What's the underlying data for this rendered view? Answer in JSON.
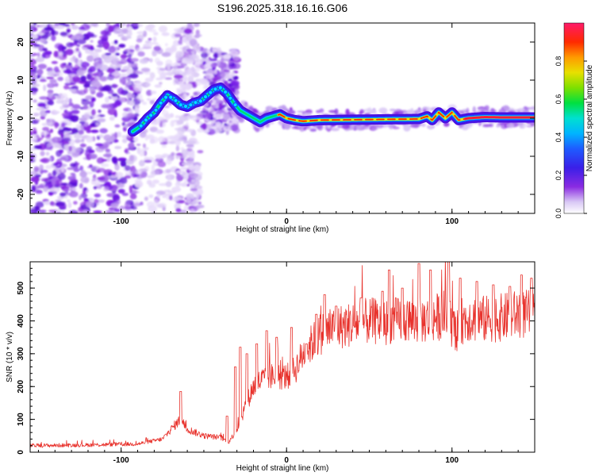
{
  "title": "S196.2025.318.16.16.G06",
  "chart_data": [
    {
      "type": "heatmap",
      "name": "spectrogram",
      "xlabel": "Height of straight line (km)",
      "ylabel": "Frequency (Hz)",
      "xlim": [
        -155,
        150
      ],
      "ylim": [
        -25,
        25
      ],
      "xticks": [
        -100,
        0,
        100
      ],
      "yticks": [
        20,
        10,
        0,
        -10,
        -20
      ],
      "trace_x": [
        -93,
        -88,
        -84,
        -80,
        -76,
        -72,
        -68,
        -64,
        -60,
        -56,
        -52,
        -48,
        -44,
        -40,
        -36,
        -32,
        -28,
        -24,
        -20,
        -16,
        -12,
        -8,
        -4,
        0,
        5,
        10,
        20,
        40,
        60,
        80,
        85,
        88,
        92,
        96,
        100,
        104,
        110,
        120,
        130,
        140,
        150
      ],
      "trace_y": [
        -3.5,
        -2,
        0,
        1.5,
        4,
        6,
        5,
        3.5,
        3,
        4,
        4.5,
        6,
        7.5,
        8,
        6.5,
        4,
        2,
        1,
        0,
        -1,
        0,
        0.5,
        1,
        0,
        -0.5,
        -0.8,
        -0.5,
        -0.4,
        -0.3,
        -0.2,
        0.5,
        -0.5,
        1.5,
        0,
        1.5,
        -0.5,
        0,
        0.3,
        0.2,
        0.2,
        0.2
      ],
      "colorbar": {
        "label": "Normalized spectral amplitude",
        "ticks": [
          "0.0",
          "0.2",
          "0.4",
          "0.6",
          "0.8"
        ],
        "range": [
          0,
          1
        ]
      }
    },
    {
      "type": "line",
      "name": "snr",
      "xlabel": "Height of straight line (km)",
      "ylabel": "SNR (10 * v/v)",
      "xlim": [
        -155,
        150
      ],
      "ylim": [
        0,
        580
      ],
      "xticks": [
        -100,
        0,
        100
      ],
      "yticks": [
        0,
        100,
        200,
        300,
        400,
        500
      ],
      "color": "#e8322c",
      "baseline_x": [
        -155,
        -120,
        -90,
        -75,
        -68,
        -64,
        -60,
        -50,
        -40,
        -35,
        -30,
        -25,
        -20,
        -15,
        -10,
        -5,
        0,
        5,
        10,
        15,
        20,
        25,
        30,
        40,
        50,
        60,
        70,
        80,
        90,
        95,
        100,
        103,
        106,
        110,
        120,
        130,
        140,
        150
      ],
      "baseline_y": [
        20,
        22,
        25,
        40,
        80,
        100,
        70,
        50,
        45,
        30,
        70,
        140,
        200,
        220,
        230,
        230,
        230,
        250,
        300,
        330,
        360,
        370,
        380,
        390,
        400,
        395,
        405,
        400,
        410,
        420,
        390,
        340,
        400,
        410,
        405,
        410,
        420,
        420
      ],
      "spikes": [
        {
          "x": -64,
          "y": 185
        },
        {
          "x": -36,
          "y": 110
        },
        {
          "x": -31,
          "y": 260
        },
        {
          "x": -28,
          "y": 320
        },
        {
          "x": -24,
          "y": 300
        },
        {
          "x": -18,
          "y": 330
        },
        {
          "x": -12,
          "y": 370
        },
        {
          "x": -6,
          "y": 350
        },
        {
          "x": 3,
          "y": 380
        },
        {
          "x": 12,
          "y": 330
        },
        {
          "x": 18,
          "y": 420
        },
        {
          "x": 23,
          "y": 480
        },
        {
          "x": 30,
          "y": 445
        },
        {
          "x": 45,
          "y": 470
        },
        {
          "x": 58,
          "y": 490
        },
        {
          "x": 62,
          "y": 555
        },
        {
          "x": 70,
          "y": 500
        },
        {
          "x": 80,
          "y": 575
        },
        {
          "x": 87,
          "y": 555
        },
        {
          "x": 98,
          "y": 585
        },
        {
          "x": 101,
          "y": 280
        },
        {
          "x": 105,
          "y": 530
        },
        {
          "x": 115,
          "y": 520
        },
        {
          "x": 125,
          "y": 510
        },
        {
          "x": 135,
          "y": 505
        },
        {
          "x": 142,
          "y": 540
        },
        {
          "x": 148,
          "y": 530
        }
      ]
    }
  ]
}
